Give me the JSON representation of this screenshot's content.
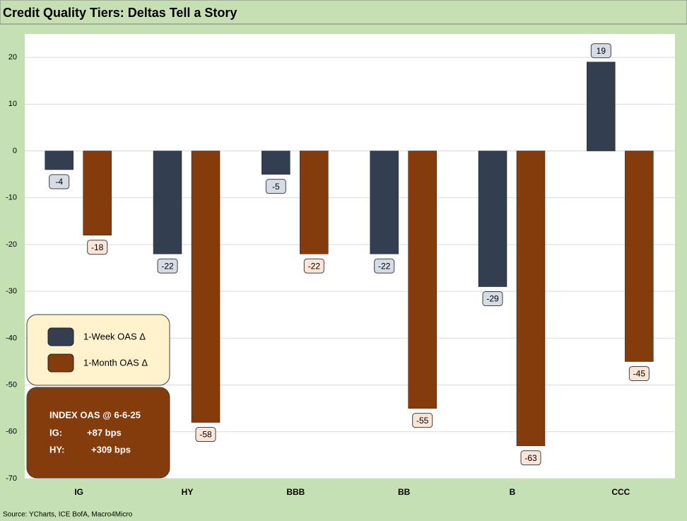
{
  "chart_data": {
    "type": "bar",
    "title": "Credit Quality Tiers: Deltas Tell a Story",
    "categories": [
      "IG",
      "HY",
      "BBB",
      "BB",
      "B",
      "CCC"
    ],
    "series": [
      {
        "name": "1-Week OAS Δ",
        "color": "#333f50",
        "label_fill": "#d6dce5",
        "values": [
          -4,
          -22,
          -5,
          -22,
          -29,
          19
        ]
      },
      {
        "name": "1-Month OAS Δ",
        "color": "#843c0c",
        "label_fill": "#fbe5d6",
        "values": [
          -18,
          -58,
          -22,
          -55,
          -63,
          -45
        ]
      }
    ],
    "ylim": [
      -70,
      25
    ],
    "yticks": [
      -70,
      -60,
      -50,
      -40,
      -30,
      -20,
      -10,
      0,
      10,
      20
    ],
    "grid": true,
    "annotation": {
      "title": "INDEX OAS @ 6-6-25",
      "lines": [
        {
          "label": "IG:",
          "value": "+87 bps"
        },
        {
          "label": "HY:",
          "value": "+309 bps"
        }
      ]
    },
    "source": "Source: YCharts, ICE BofA, Macro4Micro"
  }
}
